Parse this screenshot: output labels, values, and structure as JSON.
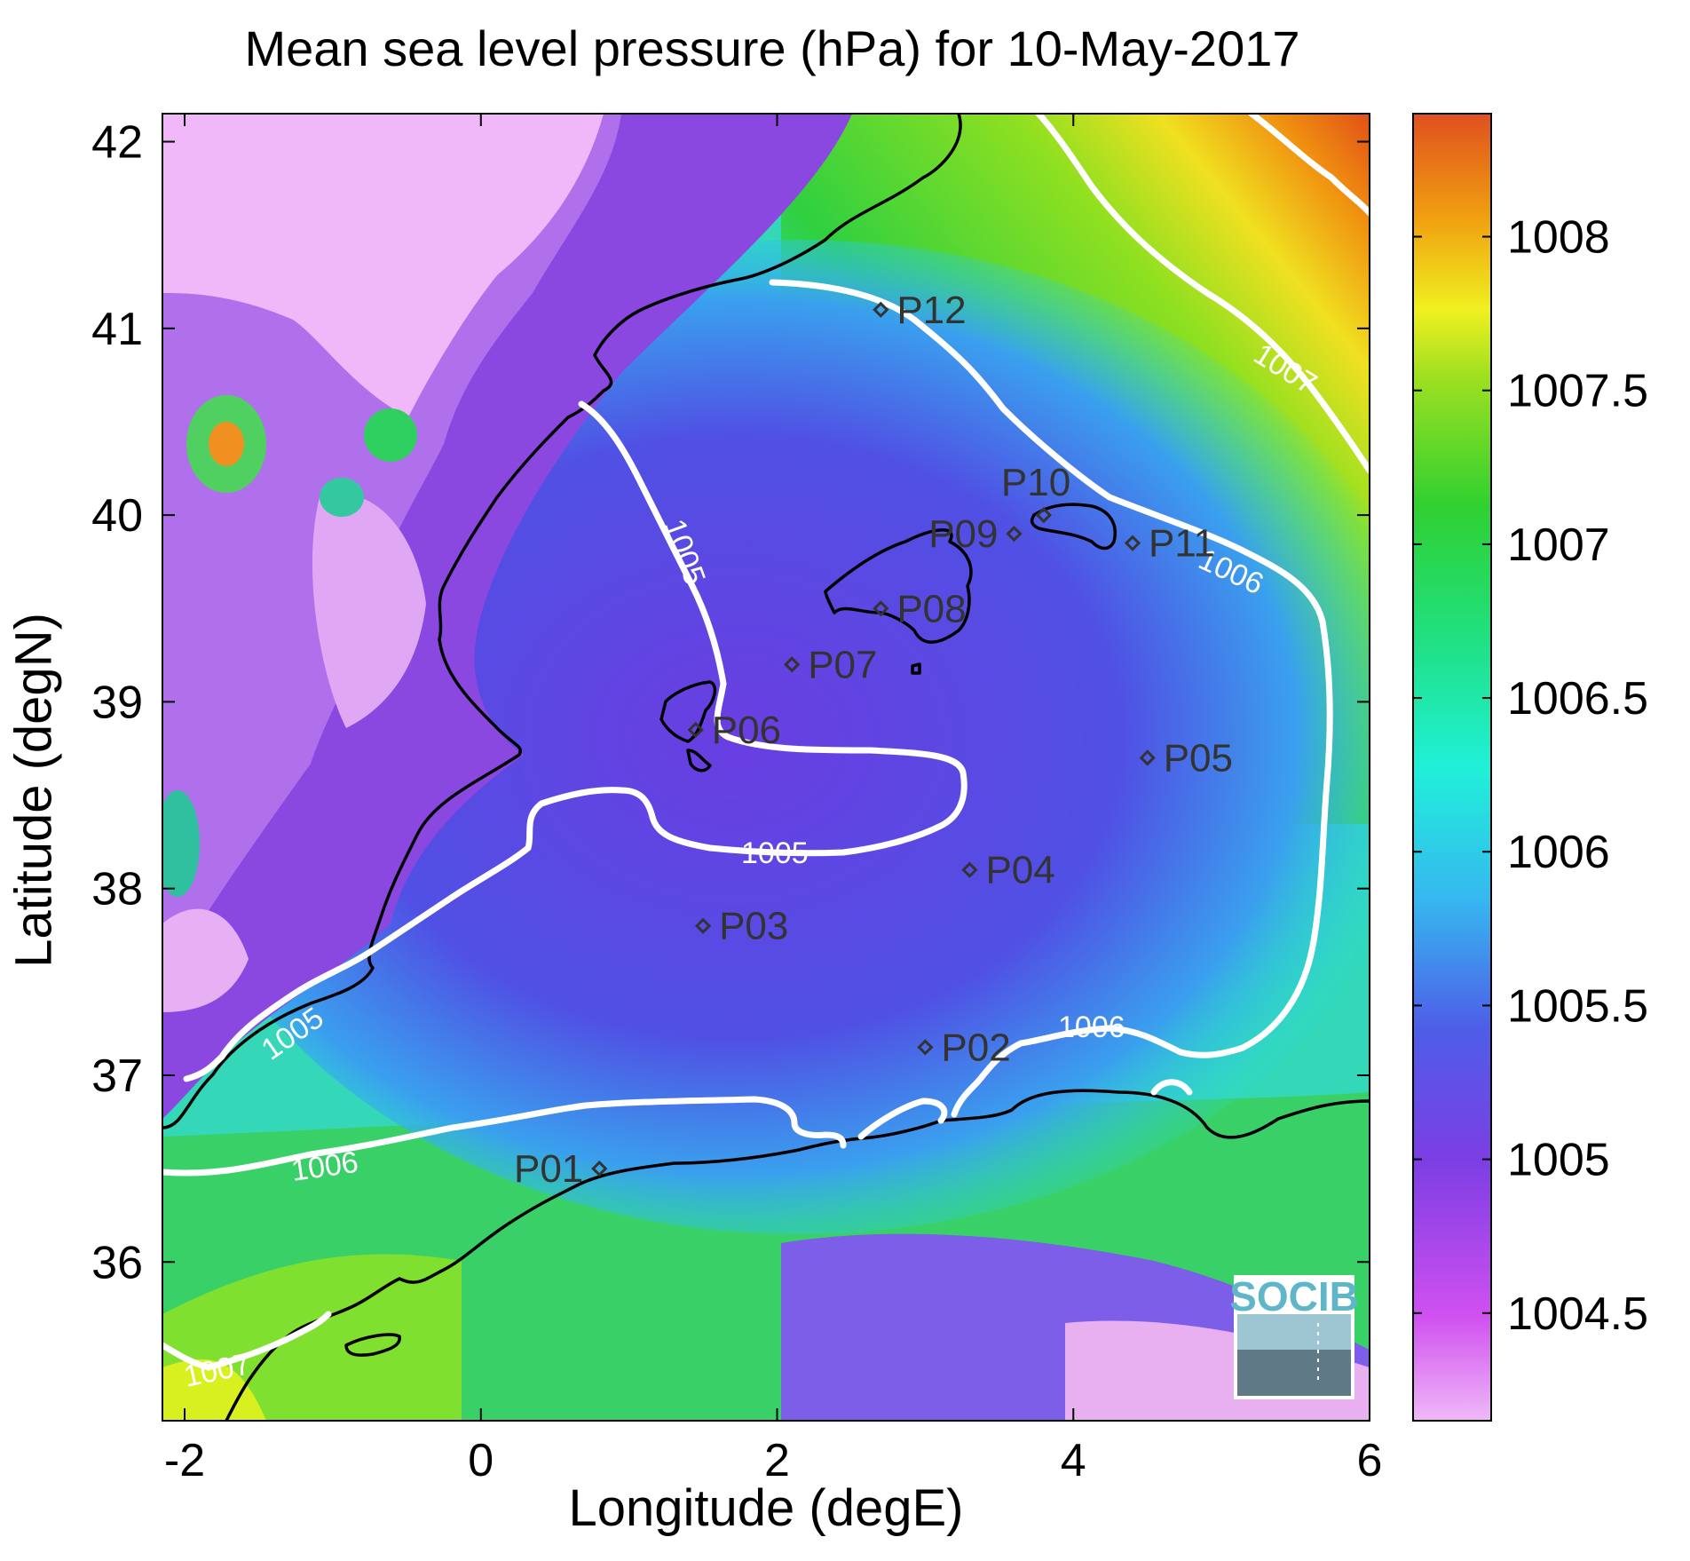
{
  "title": "Mean sea level pressure (hPa) for 10-May-2017",
  "xlabel": "Longitude (degE)",
  "ylabel": "Latitude (degN)",
  "colors": {
    "low": "#f0b0f5",
    "violet": "#8040e0",
    "blue": "#4a6ae8",
    "cyan": "#30e0f0",
    "green": "#30d040",
    "yellow": "#f0f020",
    "orange": "#f08010",
    "red": "#e05010",
    "contour": "#ffffff",
    "coast": "#000000"
  },
  "logo": {
    "text": "SOCIB"
  },
  "chart_data": {
    "type": "heatmap",
    "title": "Mean sea level pressure (hPa) for 10-May-2017",
    "xlabel": "Longitude (degE)",
    "ylabel": "Latitude (degN)",
    "xlim": [
      -2.15,
      6.0
    ],
    "ylim": [
      35.15,
      42.15
    ],
    "x_ticks": [
      "-2",
      "0",
      "2",
      "4",
      "6"
    ],
    "y_ticks": [
      "36",
      "37",
      "38",
      "39",
      "40",
      "41",
      "42"
    ],
    "colorbar": {
      "range": [
        1004.15,
        1008.4
      ],
      "ticks": [
        "1004.5",
        "1005",
        "1005.5",
        "1006",
        "1006.5",
        "1007",
        "1007.5",
        "1008"
      ]
    },
    "contour_labels": [
      "1005",
      "1005",
      "1005",
      "1006",
      "1006",
      "1006",
      "1007",
      "1007"
    ],
    "stations": [
      {
        "name": "P01",
        "lon": 0.8,
        "lat": 36.5
      },
      {
        "name": "P02",
        "lon": 3.0,
        "lat": 37.15
      },
      {
        "name": "P03",
        "lon": 1.5,
        "lat": 37.8
      },
      {
        "name": "P04",
        "lon": 3.3,
        "lat": 38.1
      },
      {
        "name": "P05",
        "lon": 4.5,
        "lat": 38.7
      },
      {
        "name": "P06",
        "lon": 1.45,
        "lat": 38.85
      },
      {
        "name": "P07",
        "lon": 2.1,
        "lat": 39.2
      },
      {
        "name": "P08",
        "lon": 2.7,
        "lat": 39.5
      },
      {
        "name": "P09",
        "lon": 3.6,
        "lat": 39.9
      },
      {
        "name": "P10",
        "lon": 3.8,
        "lat": 40.0
      },
      {
        "name": "P11",
        "lon": 4.4,
        "lat": 39.85
      },
      {
        "name": "P12",
        "lon": 2.7,
        "lat": 41.1
      }
    ]
  }
}
